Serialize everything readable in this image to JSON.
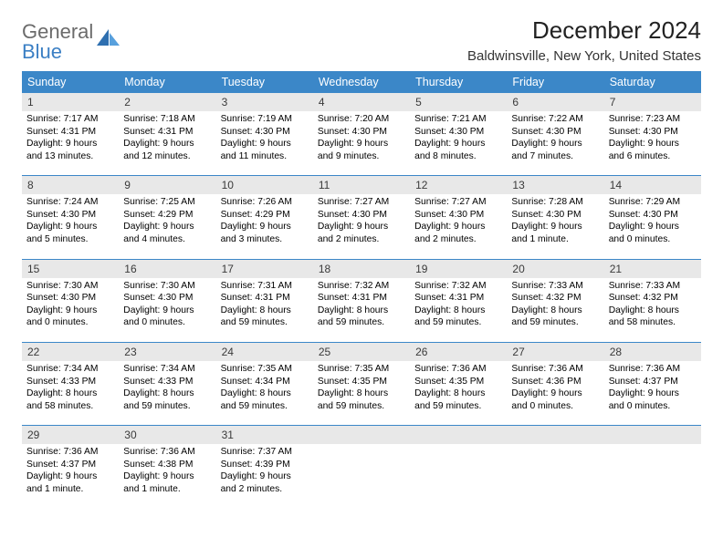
{
  "logo": {
    "text_gray": "General",
    "text_blue": "Blue"
  },
  "header": {
    "title": "December 2024",
    "location": "Baldwinsville, New York, United States"
  },
  "colors": {
    "header_bg": "#3b87c8",
    "header_text": "#ffffff",
    "daynum_bg": "#e8e8e8",
    "rule": "#3b87c8",
    "logo_gray": "#6b6b6b",
    "logo_blue": "#3b7fc4"
  },
  "weekdays": [
    "Sunday",
    "Monday",
    "Tuesday",
    "Wednesday",
    "Thursday",
    "Friday",
    "Saturday"
  ],
  "weeks": [
    [
      {
        "n": "1",
        "sr": "Sunrise: 7:17 AM",
        "ss": "Sunset: 4:31 PM",
        "d1": "Daylight: 9 hours",
        "d2": "and 13 minutes."
      },
      {
        "n": "2",
        "sr": "Sunrise: 7:18 AM",
        "ss": "Sunset: 4:31 PM",
        "d1": "Daylight: 9 hours",
        "d2": "and 12 minutes."
      },
      {
        "n": "3",
        "sr": "Sunrise: 7:19 AM",
        "ss": "Sunset: 4:30 PM",
        "d1": "Daylight: 9 hours",
        "d2": "and 11 minutes."
      },
      {
        "n": "4",
        "sr": "Sunrise: 7:20 AM",
        "ss": "Sunset: 4:30 PM",
        "d1": "Daylight: 9 hours",
        "d2": "and 9 minutes."
      },
      {
        "n": "5",
        "sr": "Sunrise: 7:21 AM",
        "ss": "Sunset: 4:30 PM",
        "d1": "Daylight: 9 hours",
        "d2": "and 8 minutes."
      },
      {
        "n": "6",
        "sr": "Sunrise: 7:22 AM",
        "ss": "Sunset: 4:30 PM",
        "d1": "Daylight: 9 hours",
        "d2": "and 7 minutes."
      },
      {
        "n": "7",
        "sr": "Sunrise: 7:23 AM",
        "ss": "Sunset: 4:30 PM",
        "d1": "Daylight: 9 hours",
        "d2": "and 6 minutes."
      }
    ],
    [
      {
        "n": "8",
        "sr": "Sunrise: 7:24 AM",
        "ss": "Sunset: 4:30 PM",
        "d1": "Daylight: 9 hours",
        "d2": "and 5 minutes."
      },
      {
        "n": "9",
        "sr": "Sunrise: 7:25 AM",
        "ss": "Sunset: 4:29 PM",
        "d1": "Daylight: 9 hours",
        "d2": "and 4 minutes."
      },
      {
        "n": "10",
        "sr": "Sunrise: 7:26 AM",
        "ss": "Sunset: 4:29 PM",
        "d1": "Daylight: 9 hours",
        "d2": "and 3 minutes."
      },
      {
        "n": "11",
        "sr": "Sunrise: 7:27 AM",
        "ss": "Sunset: 4:30 PM",
        "d1": "Daylight: 9 hours",
        "d2": "and 2 minutes."
      },
      {
        "n": "12",
        "sr": "Sunrise: 7:27 AM",
        "ss": "Sunset: 4:30 PM",
        "d1": "Daylight: 9 hours",
        "d2": "and 2 minutes."
      },
      {
        "n": "13",
        "sr": "Sunrise: 7:28 AM",
        "ss": "Sunset: 4:30 PM",
        "d1": "Daylight: 9 hours",
        "d2": "and 1 minute."
      },
      {
        "n": "14",
        "sr": "Sunrise: 7:29 AM",
        "ss": "Sunset: 4:30 PM",
        "d1": "Daylight: 9 hours",
        "d2": "and 0 minutes."
      }
    ],
    [
      {
        "n": "15",
        "sr": "Sunrise: 7:30 AM",
        "ss": "Sunset: 4:30 PM",
        "d1": "Daylight: 9 hours",
        "d2": "and 0 minutes."
      },
      {
        "n": "16",
        "sr": "Sunrise: 7:30 AM",
        "ss": "Sunset: 4:30 PM",
        "d1": "Daylight: 9 hours",
        "d2": "and 0 minutes."
      },
      {
        "n": "17",
        "sr": "Sunrise: 7:31 AM",
        "ss": "Sunset: 4:31 PM",
        "d1": "Daylight: 8 hours",
        "d2": "and 59 minutes."
      },
      {
        "n": "18",
        "sr": "Sunrise: 7:32 AM",
        "ss": "Sunset: 4:31 PM",
        "d1": "Daylight: 8 hours",
        "d2": "and 59 minutes."
      },
      {
        "n": "19",
        "sr": "Sunrise: 7:32 AM",
        "ss": "Sunset: 4:31 PM",
        "d1": "Daylight: 8 hours",
        "d2": "and 59 minutes."
      },
      {
        "n": "20",
        "sr": "Sunrise: 7:33 AM",
        "ss": "Sunset: 4:32 PM",
        "d1": "Daylight: 8 hours",
        "d2": "and 59 minutes."
      },
      {
        "n": "21",
        "sr": "Sunrise: 7:33 AM",
        "ss": "Sunset: 4:32 PM",
        "d1": "Daylight: 8 hours",
        "d2": "and 58 minutes."
      }
    ],
    [
      {
        "n": "22",
        "sr": "Sunrise: 7:34 AM",
        "ss": "Sunset: 4:33 PM",
        "d1": "Daylight: 8 hours",
        "d2": "and 58 minutes."
      },
      {
        "n": "23",
        "sr": "Sunrise: 7:34 AM",
        "ss": "Sunset: 4:33 PM",
        "d1": "Daylight: 8 hours",
        "d2": "and 59 minutes."
      },
      {
        "n": "24",
        "sr": "Sunrise: 7:35 AM",
        "ss": "Sunset: 4:34 PM",
        "d1": "Daylight: 8 hours",
        "d2": "and 59 minutes."
      },
      {
        "n": "25",
        "sr": "Sunrise: 7:35 AM",
        "ss": "Sunset: 4:35 PM",
        "d1": "Daylight: 8 hours",
        "d2": "and 59 minutes."
      },
      {
        "n": "26",
        "sr": "Sunrise: 7:36 AM",
        "ss": "Sunset: 4:35 PM",
        "d1": "Daylight: 8 hours",
        "d2": "and 59 minutes."
      },
      {
        "n": "27",
        "sr": "Sunrise: 7:36 AM",
        "ss": "Sunset: 4:36 PM",
        "d1": "Daylight: 9 hours",
        "d2": "and 0 minutes."
      },
      {
        "n": "28",
        "sr": "Sunrise: 7:36 AM",
        "ss": "Sunset: 4:37 PM",
        "d1": "Daylight: 9 hours",
        "d2": "and 0 minutes."
      }
    ],
    [
      {
        "n": "29",
        "sr": "Sunrise: 7:36 AM",
        "ss": "Sunset: 4:37 PM",
        "d1": "Daylight: 9 hours",
        "d2": "and 1 minute."
      },
      {
        "n": "30",
        "sr": "Sunrise: 7:36 AM",
        "ss": "Sunset: 4:38 PM",
        "d1": "Daylight: 9 hours",
        "d2": "and 1 minute."
      },
      {
        "n": "31",
        "sr": "Sunrise: 7:37 AM",
        "ss": "Sunset: 4:39 PM",
        "d1": "Daylight: 9 hours",
        "d2": "and 2 minutes."
      },
      {
        "empty": true
      },
      {
        "empty": true
      },
      {
        "empty": true
      },
      {
        "empty": true
      }
    ]
  ]
}
